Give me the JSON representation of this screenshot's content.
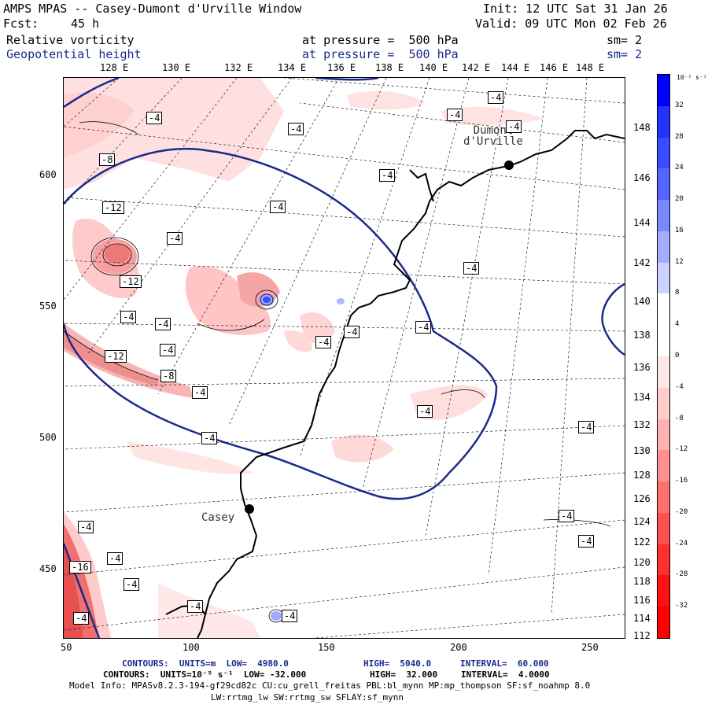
{
  "header": {
    "title": "AMPS MPAS -- Casey-Dumont d'Urville Window",
    "init": "Init: 12 UTC Sat 31 Jan 26",
    "fcst_label": "Fcst:",
    "fcst_value": "45 h",
    "valid": "Valid: 09 UTC Mon 02 Feb 26"
  },
  "fields": [
    {
      "name": "Relative vorticity",
      "pressure": "at pressure =  500 hPa",
      "sm": "sm= 2",
      "color": "#000000"
    },
    {
      "name": "Geopotential height",
      "pressure": "at pressure =  500 hPa",
      "sm": "sm= 2",
      "color": "#1a2a8c"
    }
  ],
  "map": {
    "top_lon_labels": [
      "128 E",
      "130 E",
      "132 E",
      "134 E",
      "136 E",
      "138 E",
      "140 E",
      "142 E",
      "144 E",
      "146 E",
      "148 E"
    ],
    "right_lon_labels": [
      "148 E",
      "146 E",
      "144 E",
      "142 E",
      "140 E",
      "138 E",
      "136 E",
      "134 E",
      "132 E",
      "130 E",
      "128 E",
      "126 E",
      "124 E",
      "122 E",
      "120 E",
      "118 E",
      "116 E",
      "114 E",
      "112 E"
    ],
    "x_ticks": [
      "50",
      "100",
      "150",
      "200",
      "250"
    ],
    "y_ticks": [
      "600",
      "550",
      "500",
      "450"
    ],
    "stations": [
      {
        "name": "Dumont\nd'Urville"
      },
      {
        "name": "Casey"
      }
    ],
    "contour_labels": [
      "-4",
      "-4",
      "-4",
      "-4",
      "-8",
      "-4",
      "-12",
      "-4",
      "-12",
      "-4",
      "-4",
      "-4",
      "-4",
      "-12",
      "-8",
      "-4",
      "-4",
      "-4",
      "-4",
      "-4",
      "-4",
      "-4",
      "-4",
      "-4",
      "-4",
      "-4",
      "-4",
      "-4",
      "-4",
      "-16",
      "-4",
      "-4",
      "-4",
      "-4",
      "-4"
    ],
    "coast_color": "#000000",
    "height_contour_color": "#1a2a8c"
  },
  "colorbar": {
    "unit": "10⁻⁵ s⁻¹",
    "labels": [
      "32",
      "28",
      "24",
      "20",
      "16",
      "12",
      "8",
      "4",
      "0",
      "-4",
      "-8",
      "-12",
      "-16",
      "-20",
      "-24",
      "-28",
      "-32"
    ],
    "colors": [
      "#0000ff",
      "#2233ff",
      "#3a4cff",
      "#5566ff",
      "#7a88ff",
      "#a3acff",
      "#ccd1ff",
      "#ffffff",
      "#ffffff",
      "#ffe6e6",
      "#ffcccc",
      "#ffb0b0",
      "#ff9090",
      "#ff7070",
      "#ff5050",
      "#ff3030",
      "#ff1010",
      "#ff0000"
    ]
  },
  "footer": {
    "line1_a": "CONTOURS:  UNITS=m  LOW=  4980.0",
    "line1_b": "HIGH=  5040.0",
    "line1_c": "INTERVAL=  60.000",
    "line2_a": "CONTOURS:  UNITS=10⁻⁵ s⁻¹  LOW= -32.000",
    "line2_b": "HIGH=  32.000",
    "line2_c": "INTERVAL=  4.0000",
    "line3": "Model Info: MPASv8.2.3-194-gf29cd82c CU:cu_grell_freitas PBL:bl_mynn MP:mp_thompson SF:sf_noahmp 8.0",
    "line4": "LW:rrtmg_lw SW:rrtmg_sw SFLAY:sf_mynn"
  }
}
